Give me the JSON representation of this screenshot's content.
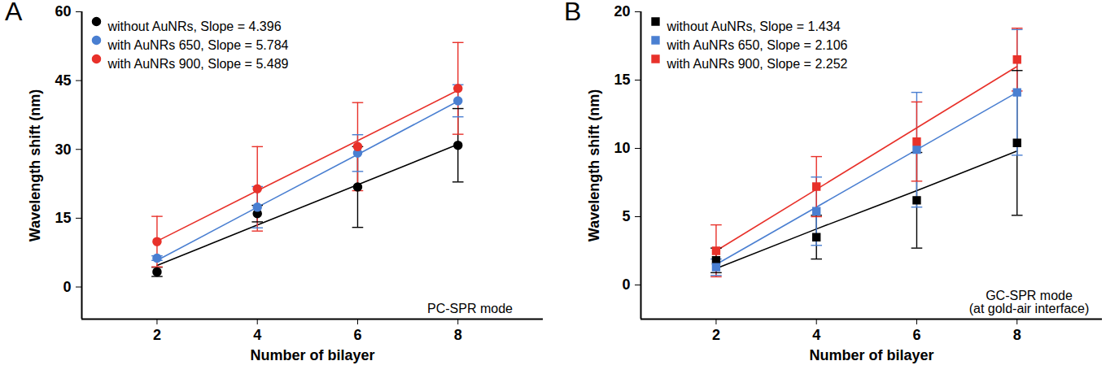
{
  "chart_data": [
    {
      "type": "scatter",
      "panel": "A",
      "x_label": "Number of bilayer",
      "y_label": "Wavelength shift (nm)",
      "annotation": [
        "PC-SPR mode"
      ],
      "x": [
        2,
        4,
        6,
        8
      ],
      "xlim": [
        0.5,
        9.7
      ],
      "xticks": [
        2,
        4,
        6,
        8
      ],
      "ylim": [
        -7,
        60
      ],
      "yticks": [
        0,
        15,
        30,
        45,
        60
      ],
      "marker": "circle",
      "grid": false,
      "legend": "top-left",
      "series": [
        {
          "name": "without AuNRs, Slope = 4.396",
          "color": "#000000",
          "values": [
            3.3,
            16.0,
            21.8,
            30.9
          ],
          "error": [
            1.0,
            1.8,
            8.8,
            8.0
          ],
          "fit_values": [
            4.7,
            13.5,
            22.3,
            31.1
          ]
        },
        {
          "name": "with AuNRs 650, Slope = 5.784",
          "color": "#4a7fd1",
          "values": [
            6.3,
            17.4,
            29.2,
            40.6
          ],
          "error": [
            0.5,
            4.5,
            4.0,
            3.5
          ],
          "fit_values": [
            5.8,
            17.4,
            28.9,
            40.5
          ]
        },
        {
          "name": "with AuNRs 900, Slope = 5.489",
          "color": "#e8312a",
          "values": [
            9.9,
            21.4,
            30.6,
            43.3
          ],
          "error": [
            5.5,
            9.2,
            9.6,
            10.0
          ],
          "fit_values": [
            10.0,
            21.0,
            31.9,
            42.9
          ]
        }
      ]
    },
    {
      "type": "scatter",
      "panel": "B",
      "x_label": "Number of bilayer",
      "y_label": "Wavelength shift (nm)",
      "annotation": [
        "GC-SPR mode",
        "(at gold-air interface)"
      ],
      "x": [
        2,
        4,
        6,
        8
      ],
      "xlim": [
        0.5,
        9.7
      ],
      "xticks": [
        2,
        4,
        6,
        8
      ],
      "ylim": [
        -2.5,
        20
      ],
      "yticks": [
        0,
        5,
        10,
        15,
        20
      ],
      "marker": "square",
      "grid": false,
      "legend": "top-left",
      "series": [
        {
          "name": "without AuNRs, Slope = 1.434",
          "color": "#000000",
          "values": [
            1.8,
            3.5,
            6.2,
            10.4
          ],
          "error": [
            0.9,
            1.6,
            3.5,
            5.3
          ],
          "fit_values": [
            1.2,
            4.1,
            6.9,
            9.8
          ]
        },
        {
          "name": "with AuNRs 650, Slope = 2.106",
          "color": "#4a7fd1",
          "values": [
            1.3,
            5.4,
            9.9,
            14.1
          ],
          "error": [
            0.6,
            2.5,
            4.2,
            4.6
          ],
          "fit_values": [
            1.5,
            5.7,
            9.9,
            14.1
          ]
        },
        {
          "name": "with AuNRs 900, Slope = 2.252",
          "color": "#e8312a",
          "values": [
            2.5,
            7.2,
            10.5,
            16.5
          ],
          "error": [
            1.9,
            2.2,
            2.9,
            2.3
          ],
          "fit_values": [
            2.5,
            7.0,
            11.5,
            16.0
          ]
        }
      ]
    }
  ]
}
